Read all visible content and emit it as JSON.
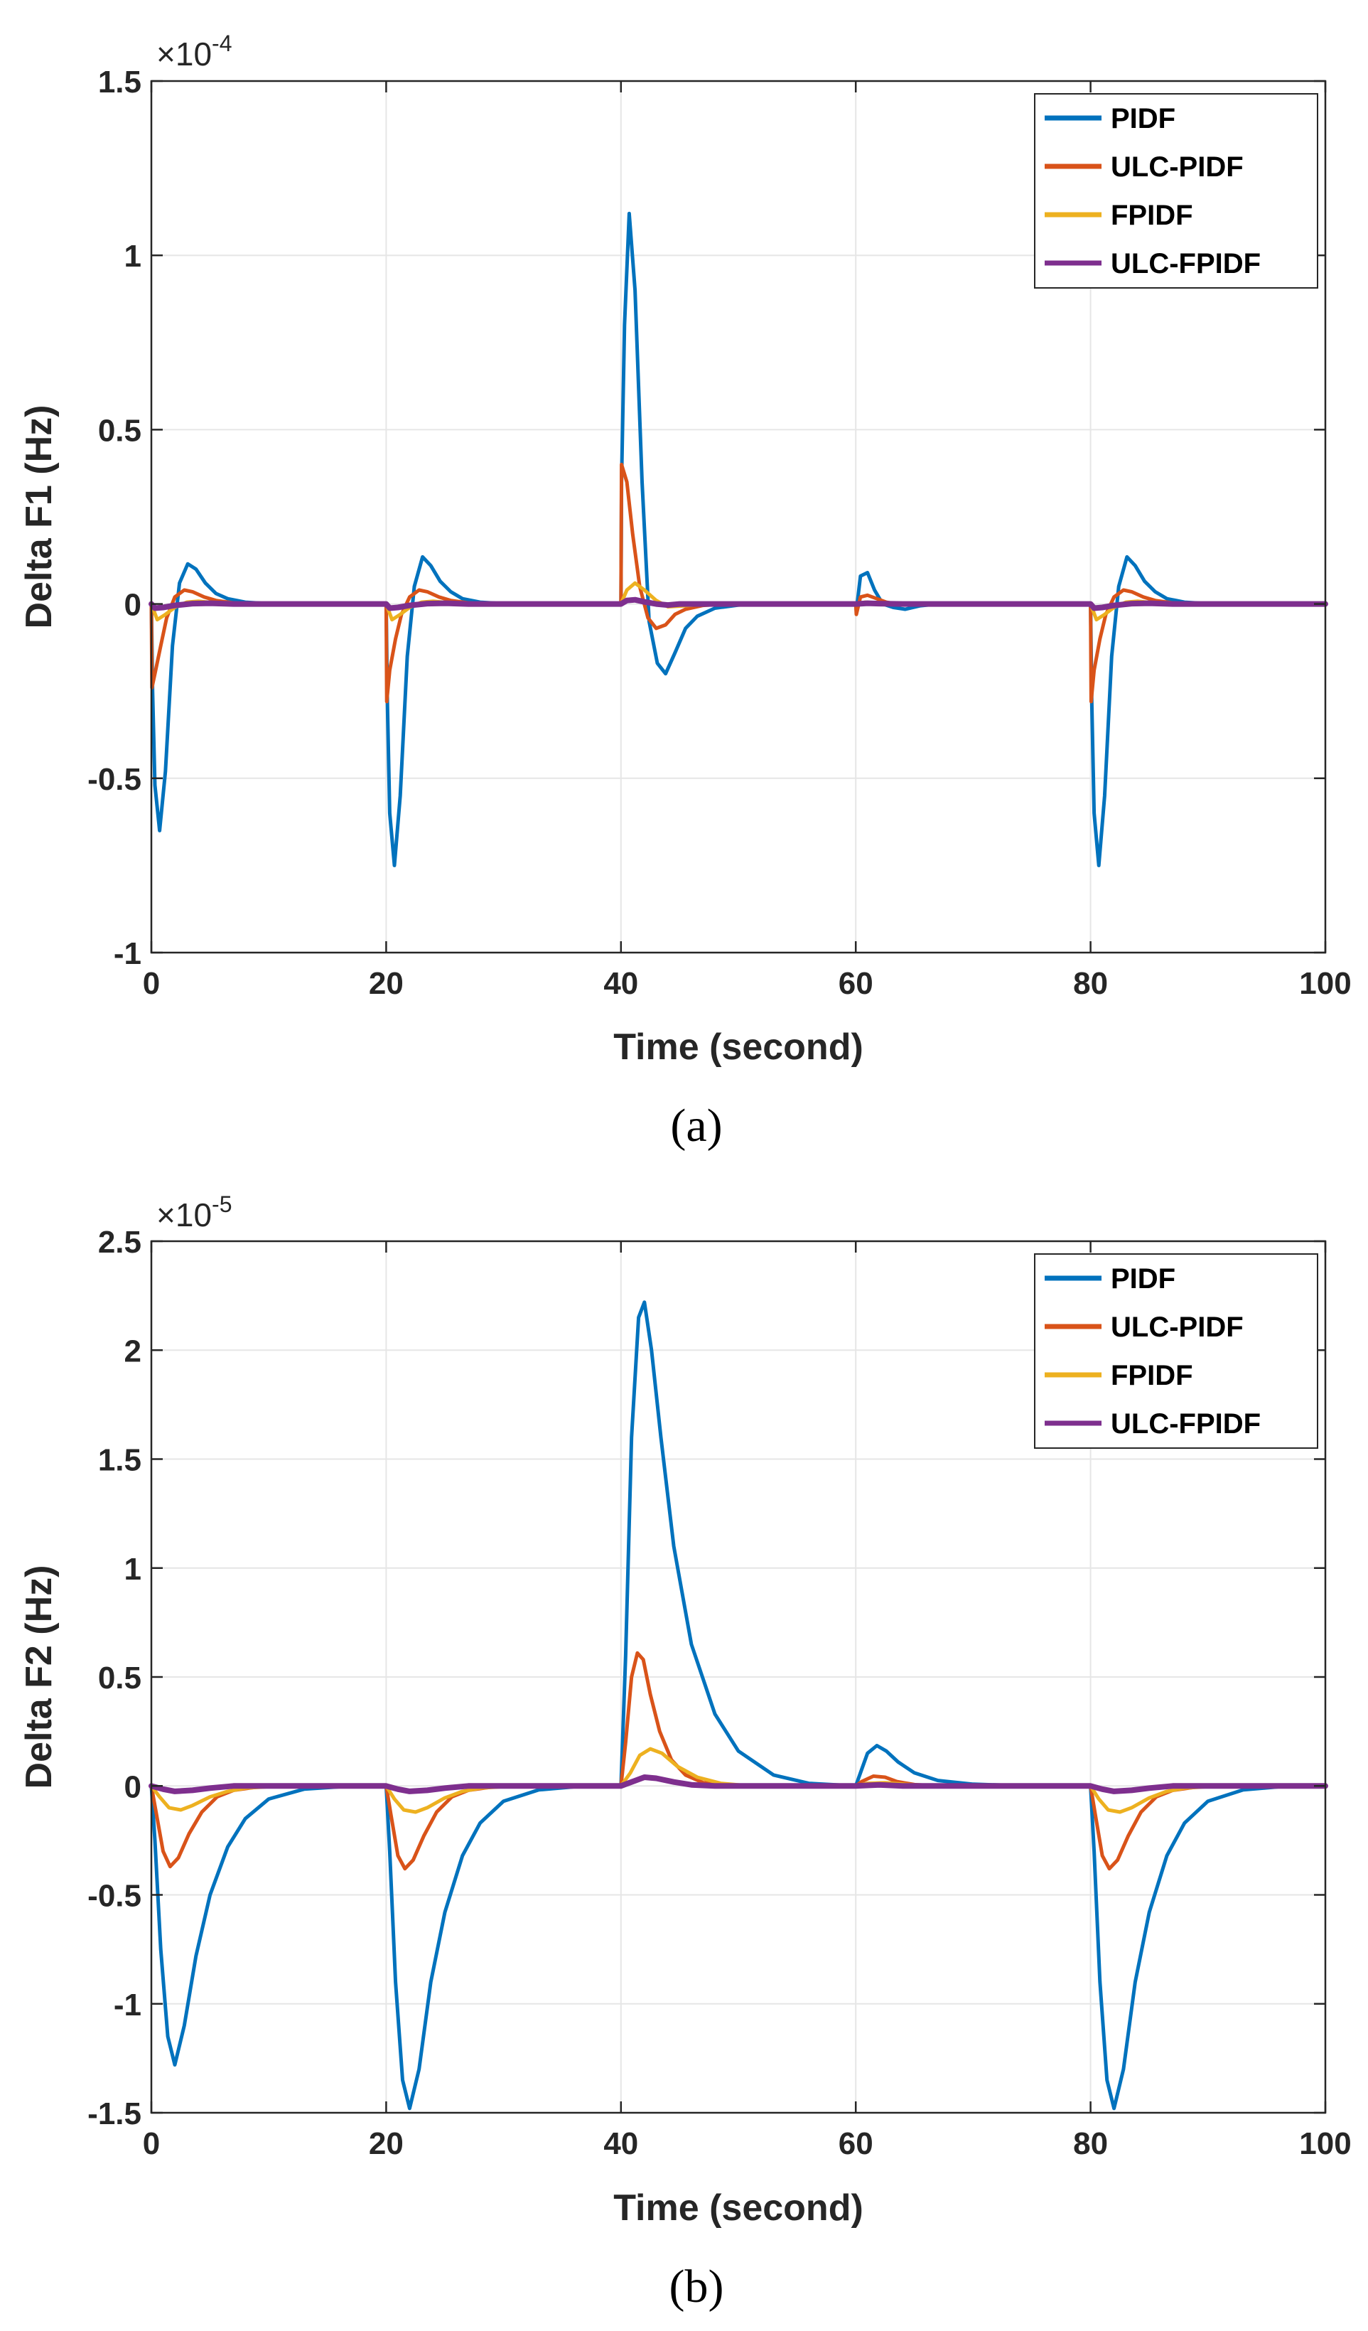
{
  "chart_data": [
    {
      "type": "line",
      "caption": "(a)",
      "xlabel": "Time (second)",
      "ylabel": "Delta F1 (Hz)",
      "exponent_base": "×10",
      "exponent_power": "-4",
      "xlim": [
        0,
        100
      ],
      "ylim": [
        -1,
        1.5
      ],
      "xticks": [
        0,
        20,
        40,
        60,
        80,
        100
      ],
      "xtick_labels": [
        "0",
        "20",
        "40",
        "60",
        "80",
        "100"
      ],
      "yticks": [
        -1,
        -0.5,
        0,
        0.5,
        1,
        1.5
      ],
      "ytick_labels": [
        "-1",
        "-0.5",
        "0",
        "0.5",
        "1",
        "1.5"
      ],
      "grid": true,
      "legend_position": "top-right",
      "series": [
        {
          "name": "PIDF",
          "color": "#0072BD",
          "x": [
            0,
            0.1,
            0.3,
            0.7,
            1.2,
            1.8,
            2.4,
            3.1,
            3.8,
            4.6,
            5.5,
            6.5,
            8,
            10,
            12,
            20,
            20.1,
            20.3,
            20.7,
            21.2,
            21.8,
            22.4,
            23.1,
            23.8,
            24.6,
            25.5,
            26.5,
            28,
            30,
            32,
            40,
            40.05,
            40.3,
            40.7,
            41.2,
            41.8,
            42.4,
            43.1,
            43.8,
            44.6,
            45.5,
            46.5,
            48,
            50,
            52,
            60,
            60.05,
            60.4,
            61,
            61.6,
            62.3,
            63.2,
            64.2,
            65.5,
            67,
            70,
            80,
            80.1,
            80.3,
            80.7,
            81.2,
            81.8,
            82.4,
            83.1,
            83.8,
            84.6,
            85.5,
            86.5,
            88,
            90,
            92,
            100
          ],
          "values": [
            0,
            -0.25,
            -0.52,
            -0.65,
            -0.48,
            -0.12,
            0.06,
            0.115,
            0.1,
            0.06,
            0.03,
            0.015,
            0.005,
            0.001,
            0,
            0,
            -0.28,
            -0.6,
            -0.75,
            -0.55,
            -0.15,
            0.05,
            0.135,
            0.11,
            0.065,
            0.035,
            0.015,
            0.005,
            0.001,
            0,
            0,
            0.35,
            0.8,
            1.12,
            0.9,
            0.35,
            -0.05,
            -0.17,
            -0.2,
            -0.14,
            -0.07,
            -0.035,
            -0.012,
            -0.003,
            0,
            0,
            -0.02,
            0.08,
            0.09,
            0.04,
            0,
            -0.01,
            -0.015,
            -0.005,
            0,
            0,
            0,
            -0.28,
            -0.6,
            -0.75,
            -0.55,
            -0.15,
            0.05,
            0.135,
            0.11,
            0.065,
            0.035,
            0.015,
            0.005,
            0.001,
            0,
            0
          ]
        },
        {
          "name": "ULC-PIDF",
          "color": "#D95319",
          "x": [
            0,
            0.05,
            0.3,
            0.8,
            1.3,
            2,
            2.8,
            3.5,
            4.5,
            5.5,
            7,
            9,
            20,
            20.05,
            20.3,
            20.8,
            21.3,
            22,
            22.8,
            23.5,
            24.5,
            25.5,
            27,
            29,
            40,
            40.05,
            40.5,
            41,
            41.6,
            42.3,
            43,
            43.8,
            44.6,
            45.5,
            47,
            49,
            60,
            60.05,
            60.4,
            61,
            61.8,
            62.6,
            63.5,
            65,
            80,
            80.05,
            80.3,
            80.8,
            81.3,
            82,
            82.8,
            83.5,
            84.5,
            85.5,
            87,
            89,
            100
          ],
          "values": [
            0,
            -0.24,
            -0.2,
            -0.12,
            -0.04,
            0.02,
            0.04,
            0.035,
            0.02,
            0.01,
            0.003,
            0,
            0,
            -0.28,
            -0.19,
            -0.1,
            -0.03,
            0.02,
            0.04,
            0.035,
            0.02,
            0.01,
            0.003,
            0,
            0,
            0.4,
            0.35,
            0.2,
            0.05,
            -0.04,
            -0.07,
            -0.06,
            -0.03,
            -0.015,
            -0.004,
            0,
            0,
            -0.03,
            0.02,
            0.025,
            0.015,
            0.005,
            0,
            0,
            0,
            -0.28,
            -0.19,
            -0.1,
            -0.03,
            0.02,
            0.04,
            0.035,
            0.02,
            0.01,
            0.003,
            0,
            0
          ]
        },
        {
          "name": "FPIDF",
          "color": "#EDB120",
          "x": [
            0,
            0.5,
            1.2,
            2,
            3,
            4,
            5.5,
            7,
            20,
            20.5,
            21.2,
            22,
            23,
            24,
            25.5,
            27,
            40,
            40.5,
            41.2,
            42,
            43,
            44,
            45.5,
            47,
            60,
            60.8,
            62,
            64,
            80,
            80.5,
            81.2,
            82,
            83,
            84,
            85.5,
            87,
            100
          ],
          "values": [
            0,
            -0.045,
            -0.03,
            -0.01,
            0.005,
            0.008,
            0.003,
            0,
            0,
            -0.045,
            -0.03,
            -0.01,
            0.005,
            0.008,
            0.003,
            0,
            0,
            0.04,
            0.06,
            0.04,
            0.01,
            -0.008,
            -0.005,
            0,
            0,
            0.005,
            0.003,
            0,
            0,
            -0.045,
            -0.03,
            -0.01,
            0.005,
            0.008,
            0.003,
            0,
            0
          ]
        },
        {
          "name": "ULC-FPIDF",
          "color": "#7E2F8E",
          "x": [
            0,
            0.3,
            1,
            2,
            3.5,
            5,
            7,
            20,
            20.3,
            21,
            22,
            23.5,
            25,
            27,
            40,
            40.5,
            41.2,
            42,
            43,
            44,
            45,
            60,
            61,
            62,
            64,
            80,
            80.3,
            81,
            82,
            83.5,
            85,
            87,
            100
          ],
          "values": [
            0,
            -0.012,
            -0.01,
            -0.004,
            0.001,
            0.002,
            0,
            0,
            -0.012,
            -0.01,
            -0.004,
            0.001,
            0.002,
            0,
            0,
            0.01,
            0.012,
            0.006,
            0,
            -0.003,
            0,
            0,
            0.002,
            0.001,
            0,
            0,
            -0.012,
            -0.01,
            -0.004,
            0.001,
            0.002,
            0,
            0
          ]
        }
      ]
    },
    {
      "type": "line",
      "caption": "(b)",
      "xlabel": "Time (second)",
      "ylabel": "Delta F2 (Hz)",
      "exponent_base": "×10",
      "exponent_power": "-5",
      "xlim": [
        0,
        100
      ],
      "ylim": [
        -1.5,
        2.5
      ],
      "xticks": [
        0,
        20,
        40,
        60,
        80,
        100
      ],
      "xtick_labels": [
        "0",
        "20",
        "40",
        "60",
        "80",
        "100"
      ],
      "yticks": [
        -1.5,
        -1,
        -0.5,
        0,
        0.5,
        1,
        1.5,
        2,
        2.5
      ],
      "ytick_labels": [
        "-1.5",
        "-1",
        "-0.5",
        "0",
        "0.5",
        "1",
        "1.5",
        "2",
        "2.5"
      ],
      "grid": true,
      "legend_position": "top-right",
      "series": [
        {
          "name": "PIDF",
          "color": "#0072BD",
          "x": [
            0,
            0.3,
            0.8,
            1.4,
            2,
            2.8,
            3.8,
            5,
            6.5,
            8,
            10,
            13,
            16,
            20,
            20.3,
            20.8,
            21.4,
            22,
            22.8,
            23.8,
            25,
            26.5,
            28,
            30,
            33,
            36,
            40,
            40.4,
            40.9,
            41.5,
            42,
            42.6,
            43.4,
            44.5,
            46,
            48,
            50,
            53,
            56,
            60,
            60.4,
            61,
            61.8,
            62.6,
            63.6,
            65,
            67,
            70,
            74,
            80,
            80.3,
            80.8,
            81.4,
            82,
            82.8,
            83.8,
            85,
            86.5,
            88,
            90,
            93,
            96,
            100
          ],
          "values": [
            0,
            -0.25,
            -0.75,
            -1.15,
            -1.28,
            -1.1,
            -0.78,
            -0.5,
            -0.28,
            -0.15,
            -0.06,
            -0.015,
            -0.004,
            0,
            -0.3,
            -0.9,
            -1.35,
            -1.48,
            -1.3,
            -0.9,
            -0.58,
            -0.32,
            -0.17,
            -0.07,
            -0.018,
            -0.004,
            0,
            0.6,
            1.6,
            2.15,
            2.22,
            2.0,
            1.6,
            1.1,
            0.65,
            0.33,
            0.16,
            0.05,
            0.012,
            0,
            0.06,
            0.15,
            0.185,
            0.16,
            0.11,
            0.06,
            0.025,
            0.008,
            0.001,
            0,
            -0.3,
            -0.9,
            -1.35,
            -1.48,
            -1.3,
            -0.9,
            -0.58,
            -0.32,
            -0.17,
            -0.07,
            -0.018,
            -0.004,
            0
          ]
        },
        {
          "name": "ULC-PIDF",
          "color": "#D95319",
          "x": [
            0,
            0.4,
            1,
            1.6,
            2.3,
            3.2,
            4.3,
            5.6,
            7,
            9,
            12,
            20,
            20.4,
            21,
            21.6,
            22.3,
            23.2,
            24.3,
            25.6,
            27,
            29,
            32,
            40,
            40.4,
            40.9,
            41.4,
            41.9,
            42.5,
            43.3,
            44.3,
            45.5,
            47,
            50,
            60,
            60.5,
            61.5,
            62.5,
            63.5,
            65,
            67,
            80,
            80.4,
            81,
            81.6,
            82.3,
            83.2,
            84.3,
            85.6,
            87,
            89,
            92,
            100
          ],
          "values": [
            0,
            -0.12,
            -0.3,
            -0.37,
            -0.33,
            -0.22,
            -0.12,
            -0.05,
            -0.02,
            -0.005,
            0,
            0,
            -0.13,
            -0.32,
            -0.38,
            -0.34,
            -0.23,
            -0.12,
            -0.05,
            -0.02,
            -0.005,
            0,
            0,
            0.2,
            0.5,
            0.61,
            0.58,
            0.42,
            0.25,
            0.12,
            0.05,
            0.015,
            0.002,
            0,
            0.02,
            0.045,
            0.04,
            0.02,
            0.006,
            0,
            0,
            -0.13,
            -0.32,
            -0.38,
            -0.34,
            -0.23,
            -0.12,
            -0.05,
            -0.02,
            -0.005,
            0,
            0
          ]
        },
        {
          "name": "FPIDF",
          "color": "#EDB120",
          "x": [
            0,
            0.7,
            1.5,
            2.5,
            3.5,
            5,
            6.5,
            8,
            11,
            20,
            20.7,
            21.5,
            22.5,
            23.5,
            25,
            26.5,
            28,
            31,
            40,
            40.8,
            41.6,
            42.5,
            43.5,
            44.8,
            46.5,
            48.5,
            51,
            60,
            61,
            62.5,
            64,
            66,
            80,
            80.7,
            81.5,
            82.5,
            83.5,
            85,
            86.5,
            88,
            91,
            100
          ],
          "values": [
            0,
            -0.05,
            -0.1,
            -0.11,
            -0.09,
            -0.05,
            -0.025,
            -0.01,
            0,
            0,
            -0.06,
            -0.11,
            -0.12,
            -0.1,
            -0.055,
            -0.025,
            -0.01,
            0,
            0,
            0.06,
            0.14,
            0.17,
            0.15,
            0.09,
            0.04,
            0.012,
            0,
            0,
            0.012,
            0.015,
            0.008,
            0,
            0,
            -0.06,
            -0.11,
            -0.12,
            -0.1,
            -0.055,
            -0.025,
            -0.01,
            0,
            0
          ]
        },
        {
          "name": "ULC-FPIDF",
          "color": "#7E2F8E",
          "x": [
            0,
            1,
            2,
            3.5,
            5,
            7,
            20,
            21,
            22,
            23.5,
            25,
            27,
            40,
            41,
            42,
            43,
            44.5,
            46,
            48,
            60,
            62,
            64,
            80,
            81,
            82,
            83.5,
            85,
            87,
            100
          ],
          "values": [
            0,
            -0.015,
            -0.025,
            -0.02,
            -0.01,
            0,
            0,
            -0.015,
            -0.025,
            -0.02,
            -0.01,
            0,
            0,
            0.02,
            0.04,
            0.035,
            0.018,
            0.005,
            0,
            0,
            0.005,
            0,
            0,
            -0.015,
            -0.025,
            -0.02,
            -0.01,
            0,
            0
          ]
        }
      ]
    }
  ]
}
